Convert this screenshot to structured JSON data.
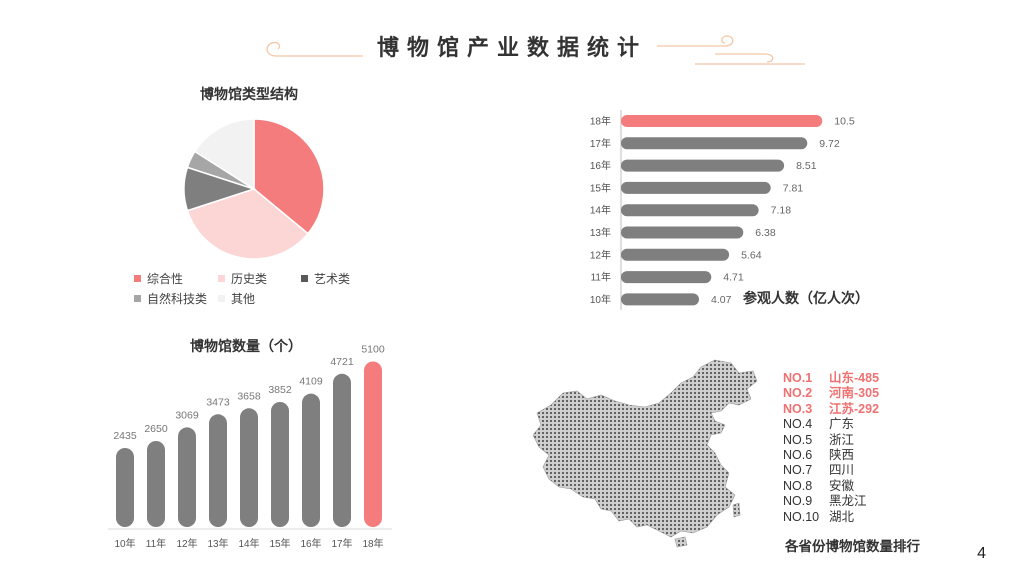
{
  "page": {
    "title": "博物馆产业数据统计",
    "page_number": "4",
    "colors": {
      "accent": "#F07171",
      "gray": "#7F7F7F",
      "light_pink": "#FCD5D5",
      "line_orange": "#F4C6A6"
    }
  },
  "chart_data": [
    {
      "type": "pie",
      "title": "博物馆类型结构",
      "categories": [
        "综合性",
        "历史类",
        "艺术类",
        "自然科技类",
        "其他"
      ],
      "values": [
        36,
        34,
        10,
        4,
        16
      ],
      "colors": [
        "#F47C7C",
        "#FCD5D5",
        "#7F7F7F",
        "#A6A6A6",
        "#F2F2F2"
      ],
      "legend_position": "bottom"
    },
    {
      "type": "bar",
      "orientation": "horizontal",
      "title": "参观人数（亿人次）",
      "categories": [
        "18年",
        "17年",
        "16年",
        "15年",
        "14年",
        "13年",
        "12年",
        "11年",
        "10年"
      ],
      "values": [
        10.5,
        9.72,
        8.51,
        7.81,
        7.18,
        6.38,
        5.64,
        4.71,
        4.07
      ],
      "value_labels": [
        "10.5",
        "9.72",
        "8.51",
        "7.81",
        "7.18",
        "6.38",
        "5.64",
        "4.71",
        "4.07"
      ],
      "highlight_index": 0,
      "xlim": [
        0,
        12
      ]
    },
    {
      "type": "bar",
      "orientation": "vertical",
      "title": "博物馆数量（个）",
      "categories": [
        "10年",
        "11年",
        "12年",
        "13年",
        "14年",
        "15年",
        "16年",
        "17年",
        "18年"
      ],
      "values": [
        2435,
        2650,
        3069,
        3473,
        3658,
        3852,
        4109,
        4721,
        5100
      ],
      "value_labels": [
        "2435",
        "2650",
        "3069",
        "3473",
        "3658",
        "3852",
        "4109",
        "4721",
        "5100"
      ],
      "highlight_index": 8,
      "ylim": [
        0,
        5300
      ]
    }
  ],
  "ranking": {
    "caption": "各省份博物馆数量排行",
    "items": [
      {
        "no": "NO.1",
        "name": "山东-485",
        "highlight": true
      },
      {
        "no": "NO.2",
        "name": "河南-305",
        "highlight": true
      },
      {
        "no": "NO.3",
        "name": "江苏-292",
        "highlight": true
      },
      {
        "no": "NO.4",
        "name": "广东",
        "highlight": false
      },
      {
        "no": "NO.5",
        "name": "浙江",
        "highlight": false
      },
      {
        "no": "NO.6",
        "name": "陕西",
        "highlight": false
      },
      {
        "no": "NO.7",
        "name": "四川",
        "highlight": false
      },
      {
        "no": "NO.8",
        "name": "安徽",
        "highlight": false
      },
      {
        "no": "NO.9",
        "name": "黑龙江",
        "highlight": false
      },
      {
        "no": "NO.10",
        "name": "湖北",
        "highlight": false
      }
    ]
  }
}
